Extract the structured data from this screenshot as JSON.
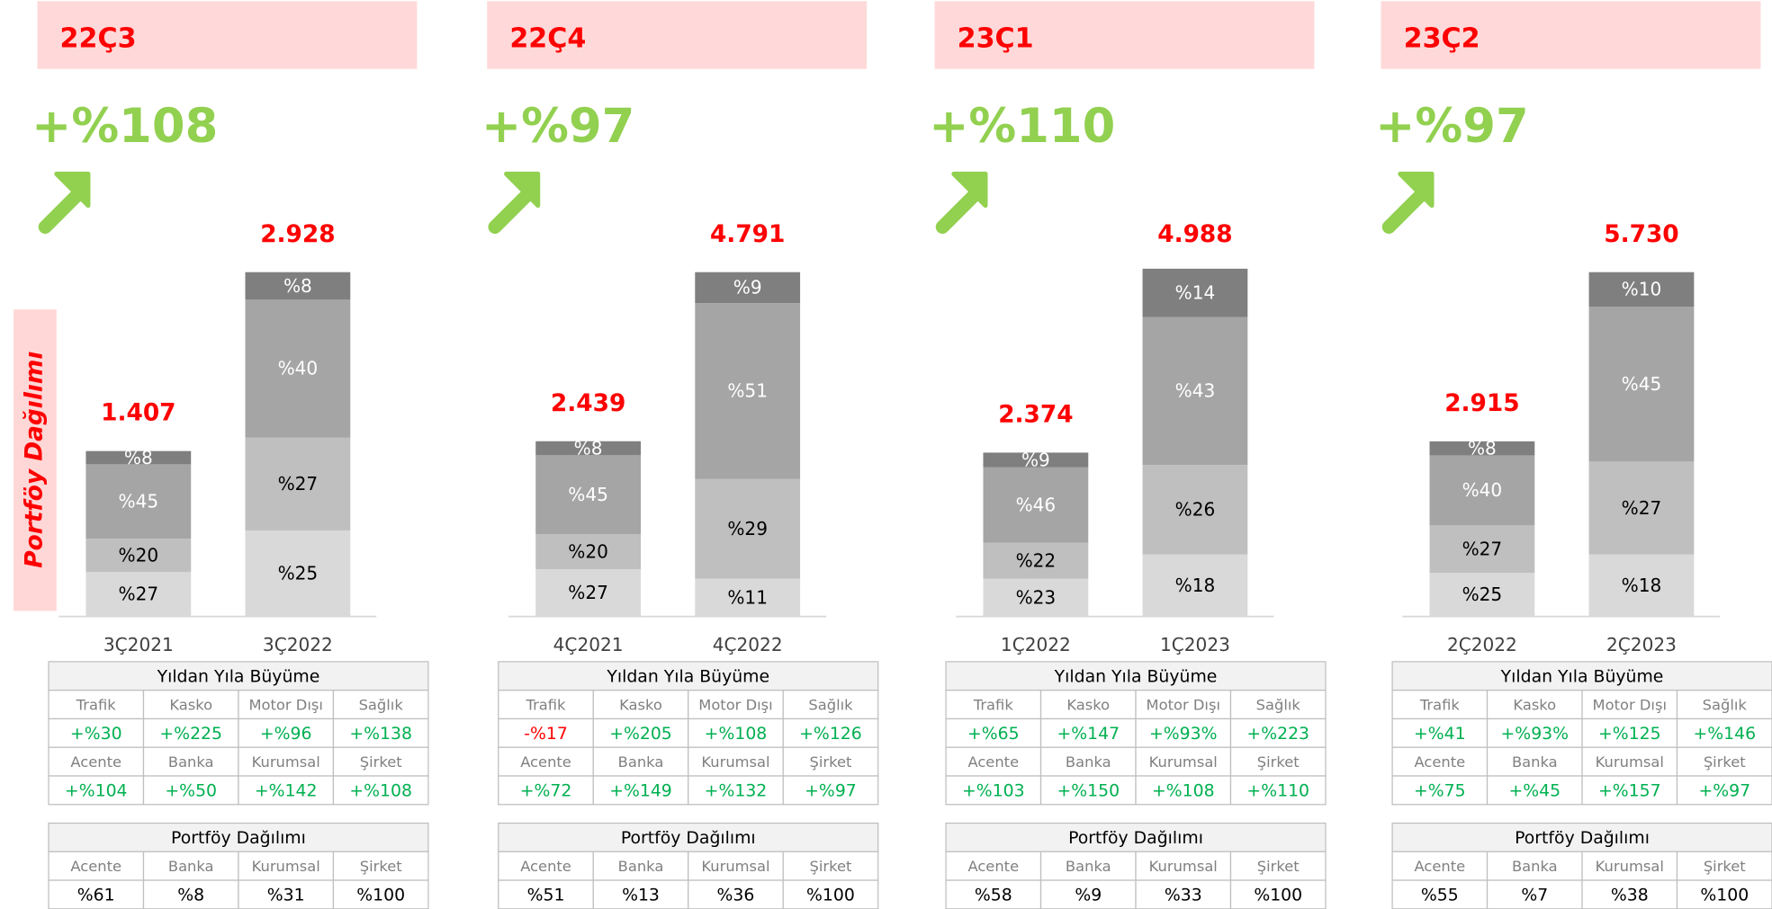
{
  "side_label": "Portföy Dağılımı",
  "chart_data": [
    {
      "type": "bar",
      "header": "22Ç3",
      "growth": "+%108",
      "categories": [
        "3Ç2021",
        "3Ç2022"
      ],
      "totals": [
        1407,
        2928
      ],
      "total_labels": [
        "1.407",
        "2.928"
      ],
      "series": [
        {
          "color": "#d9d9d9",
          "values": [
            27,
            25
          ],
          "value_labels": [
            "%27",
            "%25"
          ]
        },
        {
          "color": "#bfbfbf",
          "values": [
            20,
            27
          ],
          "value_labels": [
            "%20",
            "%27"
          ]
        },
        {
          "color": "#a5a5a5",
          "values": [
            45,
            40
          ],
          "value_labels": [
            "%45",
            "%40"
          ]
        },
        {
          "color": "#7f7f7f",
          "values": [
            8,
            8
          ],
          "value_labels": [
            "%8",
            "%8"
          ]
        }
      ],
      "growth_table": {
        "title": "Yıldan Yıla Büyüme",
        "rows": [
          [
            "Trafik",
            "Kasko",
            "Motor Dışı",
            "Sağlık"
          ],
          [
            "+%30",
            "+%225",
            "+%96",
            "+%138"
          ],
          [
            "Acente",
            "Banka",
            "Kurumsal",
            "Şirket"
          ],
          [
            "+%104",
            "+%50",
            "+%142",
            "+%108"
          ]
        ]
      },
      "portfolio_table": {
        "title": "Portföy Dağılımı",
        "rows": [
          [
            "Acente",
            "Banka",
            "Kurumsal",
            "Şirket"
          ],
          [
            "%61",
            "%8",
            "%31",
            "%100"
          ]
        ]
      }
    },
    {
      "type": "bar",
      "header": "22Ç4",
      "growth": "+%97",
      "categories": [
        "4Ç2021",
        "4Ç2022"
      ],
      "totals": [
        2439,
        4791
      ],
      "total_labels": [
        "2.439",
        "4.791"
      ],
      "series": [
        {
          "color": "#d9d9d9",
          "values": [
            27,
            11
          ],
          "value_labels": [
            "%27",
            "%11"
          ]
        },
        {
          "color": "#bfbfbf",
          "values": [
            20,
            29
          ],
          "value_labels": [
            "%20",
            "%29"
          ]
        },
        {
          "color": "#a5a5a5",
          "values": [
            45,
            51
          ],
          "value_labels": [
            "%45",
            "%51"
          ]
        },
        {
          "color": "#7f7f7f",
          "values": [
            8,
            9
          ],
          "value_labels": [
            "%8",
            "%9"
          ]
        }
      ],
      "growth_table": {
        "title": "Yıldan Yıla Büyüme",
        "rows": [
          [
            "Trafik",
            "Kasko",
            "Motor Dışı",
            "Sağlık"
          ],
          [
            "-%17",
            "+%205",
            "+%108",
            "+%126"
          ],
          [
            "Acente",
            "Banka",
            "Kurumsal",
            "Şirket"
          ],
          [
            "+%72",
            "+%149",
            "+%132",
            "+%97"
          ]
        ]
      },
      "portfolio_table": {
        "title": "Portföy Dağılımı",
        "rows": [
          [
            "Acente",
            "Banka",
            "Kurumsal",
            "Şirket"
          ],
          [
            "%51",
            "%13",
            "%36",
            "%100"
          ]
        ]
      }
    },
    {
      "type": "bar",
      "header": "23Ç1",
      "growth": "+%110",
      "categories": [
        "1Ç2022",
        "1Ç2023"
      ],
      "totals": [
        2374,
        4988
      ],
      "total_labels": [
        "2.374",
        "4.988"
      ],
      "series": [
        {
          "color": "#d9d9d9",
          "values": [
            23,
            18
          ],
          "value_labels": [
            "%23",
            "%18"
          ]
        },
        {
          "color": "#bfbfbf",
          "values": [
            22,
            26
          ],
          "value_labels": [
            "%22",
            "%26"
          ]
        },
        {
          "color": "#a5a5a5",
          "values": [
            46,
            43
          ],
          "value_labels": [
            "%46",
            "%43"
          ]
        },
        {
          "color": "#7f7f7f",
          "values": [
            9,
            14
          ],
          "value_labels": [
            "%9",
            "%14"
          ]
        }
      ],
      "growth_table": {
        "title": "Yıldan Yıla Büyüme",
        "rows": [
          [
            "Trafik",
            "Kasko",
            "Motor Dışı",
            "Sağlık"
          ],
          [
            "+%65",
            "+%147",
            "+%93%",
            "+%223"
          ],
          [
            "Acente",
            "Banka",
            "Kurumsal",
            "Şirket"
          ],
          [
            "+%103",
            "+%150",
            "+%108",
            "+%110"
          ]
        ]
      },
      "portfolio_table": {
        "title": "Portföy Dağılımı",
        "rows": [
          [
            "Acente",
            "Banka",
            "Kurumsal",
            "Şirket"
          ],
          [
            "%58",
            "%9",
            "%33",
            "%100"
          ]
        ]
      }
    },
    {
      "type": "bar",
      "header": "23Ç2",
      "growth": "+%97",
      "categories": [
        "2Ç2022",
        "2Ç2023"
      ],
      "totals": [
        2915,
        5730
      ],
      "total_labels": [
        "2.915",
        "5.730"
      ],
      "series": [
        {
          "color": "#d9d9d9",
          "values": [
            25,
            18
          ],
          "value_labels": [
            "%25",
            "%18"
          ]
        },
        {
          "color": "#bfbfbf",
          "values": [
            27,
            27
          ],
          "value_labels": [
            "%27",
            "%27"
          ]
        },
        {
          "color": "#a5a5a5",
          "values": [
            40,
            45
          ],
          "value_labels": [
            "%40",
            "%45"
          ]
        },
        {
          "color": "#7f7f7f",
          "values": [
            8,
            10
          ],
          "value_labels": [
            "%8",
            "%10"
          ]
        }
      ],
      "growth_table": {
        "title": "Yıldan Yıla Büyüme",
        "rows": [
          [
            "Trafik",
            "Kasko",
            "Motor Dışı",
            "Sağlık"
          ],
          [
            "+%41",
            "+%93%",
            "+%125",
            "+%146"
          ],
          [
            "Acente",
            "Banka",
            "Kurumsal",
            "Şirket"
          ],
          [
            "+%75",
            "+%45",
            "+%157",
            "+%97"
          ]
        ]
      },
      "portfolio_table": {
        "title": "Portföy Dağılımı",
        "rows": [
          [
            "Acente",
            "Banka",
            "Kurumsal",
            "Şirket"
          ],
          [
            "%55",
            "%7",
            "%38",
            "%100"
          ]
        ]
      }
    }
  ]
}
